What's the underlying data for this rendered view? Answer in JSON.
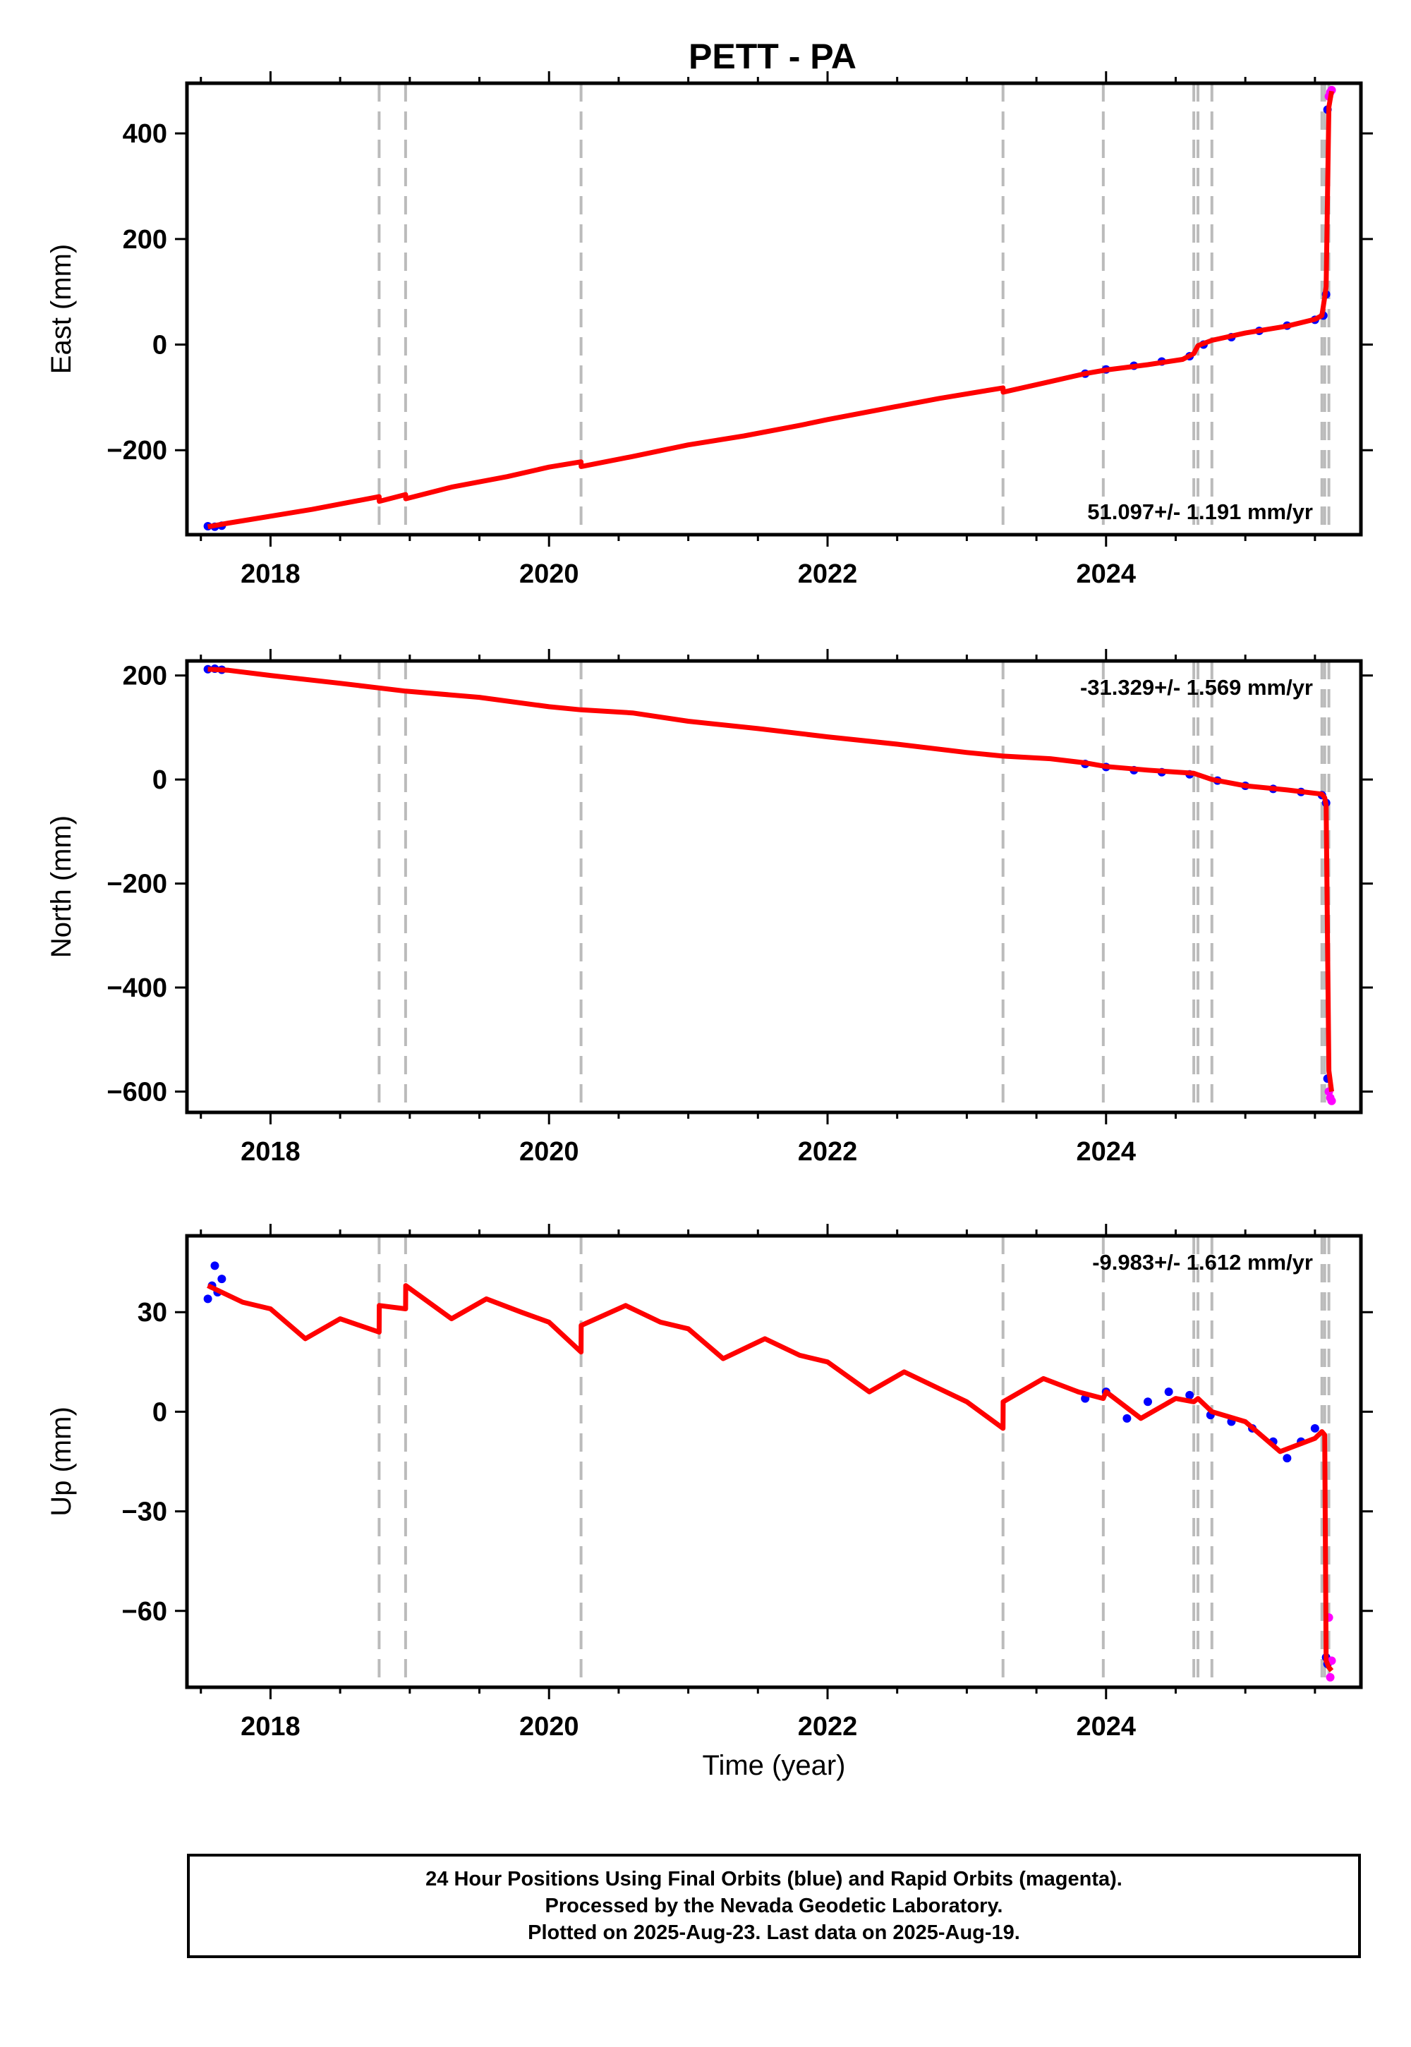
{
  "title": "PETT - PA",
  "colors": {
    "final_orbits": "#0000ff",
    "rapid_orbits": "#ff00ff",
    "model": "#ff0000",
    "event_lines": "#bbbbbb",
    "frame": "#000000"
  },
  "footer": {
    "lines": [
      "24 Hour Positions Using Final Orbits (blue) and Rapid Orbits (magenta).",
      "Processed by the Nevada Geodetic Laboratory.",
      "Plotted on 2025-Aug-23. Last data on 2025-Aug-19."
    ]
  },
  "chart_data": [
    {
      "type": "scatter",
      "component": "East",
      "ylabel": "East (mm)",
      "xlabel": "",
      "xlim": [
        2017.4,
        2025.83
      ],
      "ylim": [
        -360,
        495
      ],
      "yticks": [
        -200,
        0,
        200,
        400
      ],
      "xticks": [
        2018,
        2020,
        2022,
        2024
      ],
      "rate_label": "51.097+/- 1.191 mm/yr",
      "rate_position": "bottom-right",
      "event_lines": [
        2018.78,
        2018.97,
        2020.23,
        2023.26,
        2023.98,
        2024.63,
        2024.66,
        2024.76,
        2025.55,
        2025.57,
        2025.6
      ],
      "model": {
        "x": [
          2017.55,
          2017.7,
          2018.0,
          2018.3,
          2018.78,
          2018.781,
          2018.97,
          2018.971,
          2019.3,
          2019.7,
          2020.0,
          2020.23,
          2020.231,
          2020.6,
          2021.0,
          2021.4,
          2021.8,
          2022.0,
          2022.4,
          2022.8,
          2023.26,
          2023.261,
          2023.6,
          2023.85,
          2024.0,
          2024.3,
          2024.55,
          2024.63,
          2024.66,
          2024.76,
          2025.0,
          2025.3,
          2025.5,
          2025.55,
          2025.57,
          2025.58,
          2025.6,
          2025.62
        ],
        "y": [
          -345,
          -338,
          -325,
          -312,
          -288,
          -297,
          -284,
          -292,
          -270,
          -250,
          -232,
          -222,
          -231,
          -212,
          -190,
          -173,
          -153,
          -142,
          -122,
          -102,
          -82,
          -90,
          -70,
          -55,
          -48,
          -38,
          -28,
          -17,
          -2,
          8,
          22,
          35,
          48,
          55,
          90,
          110,
          450,
          480
        ]
      },
      "final_orbits": {
        "x": [
          2017.55,
          2017.6,
          2017.65,
          2023.85,
          2024.0,
          2024.2,
          2024.4,
          2024.6,
          2024.7,
          2024.9,
          2025.1,
          2025.3,
          2025.5,
          2025.56,
          2025.58,
          2025.59
        ],
        "y": [
          -344,
          -345,
          -343,
          -55,
          -47,
          -40,
          -32,
          -22,
          0,
          14,
          26,
          36,
          47,
          55,
          95,
          445
        ]
      },
      "rapid_orbits": {
        "x": [
          2025.6,
          2025.61,
          2025.62
        ],
        "y": [
          470,
          478,
          482
        ]
      }
    },
    {
      "type": "scatter",
      "component": "North",
      "ylabel": "North (mm)",
      "xlabel": "",
      "xlim": [
        2017.4,
        2025.83
      ],
      "ylim": [
        -640,
        228
      ],
      "yticks": [
        -600,
        -400,
        -200,
        0,
        200
      ],
      "xticks": [
        2018,
        2020,
        2022,
        2024
      ],
      "rate_label": "-31.329+/- 1.569 mm/yr",
      "rate_position": "top-right",
      "event_lines": [
        2018.78,
        2018.97,
        2020.23,
        2023.26,
        2023.98,
        2024.63,
        2024.66,
        2024.76,
        2025.55,
        2025.57,
        2025.6
      ],
      "model": {
        "x": [
          2017.55,
          2017.7,
          2018.0,
          2018.5,
          2018.78,
          2018.97,
          2019.5,
          2020.0,
          2020.23,
          2020.6,
          2021.0,
          2021.5,
          2022.0,
          2022.5,
          2023.0,
          2023.26,
          2023.6,
          2023.85,
          2024.0,
          2024.3,
          2024.63,
          2024.76,
          2025.0,
          2025.3,
          2025.55,
          2025.57,
          2025.58,
          2025.6,
          2025.62
        ],
        "y": [
          212,
          210,
          200,
          185,
          176,
          170,
          158,
          140,
          134,
          128,
          112,
          98,
          82,
          68,
          52,
          45,
          40,
          32,
          25,
          18,
          12,
          0,
          -12,
          -20,
          -28,
          -35,
          -50,
          -560,
          -600
        ]
      },
      "final_orbits": {
        "x": [
          2017.55,
          2017.6,
          2017.65,
          2023.85,
          2024.0,
          2024.2,
          2024.4,
          2024.6,
          2024.8,
          2025.0,
          2025.2,
          2025.4,
          2025.55,
          2025.58,
          2025.59
        ],
        "y": [
          212,
          213,
          211,
          30,
          24,
          18,
          14,
          10,
          -2,
          -12,
          -18,
          -24,
          -30,
          -45,
          -575
        ]
      },
      "rapid_orbits": {
        "x": [
          2025.6,
          2025.61,
          2025.62
        ],
        "y": [
          -600,
          -612,
          -618
        ]
      }
    },
    {
      "type": "scatter",
      "component": "Up",
      "ylabel": "Up (mm)",
      "xlabel": "Time (year)",
      "xlim": [
        2017.4,
        2025.83
      ],
      "ylim": [
        -83,
        53
      ],
      "yticks": [
        -60,
        -30,
        0,
        30
      ],
      "xticks": [
        2018,
        2020,
        2022,
        2024
      ],
      "rate_label": "-9.983+/- 1.612 mm/yr",
      "rate_position": "top-right",
      "event_lines": [
        2018.78,
        2018.97,
        2020.23,
        2023.26,
        2023.98,
        2024.63,
        2024.66,
        2024.76,
        2025.55,
        2025.57,
        2025.6
      ],
      "model": {
        "x": [
          2017.55,
          2017.8,
          2018.0,
          2018.25,
          2018.5,
          2018.78,
          2018.781,
          2018.97,
          2018.971,
          2019.3,
          2019.55,
          2019.8,
          2020.0,
          2020.23,
          2020.231,
          2020.55,
          2020.8,
          2021.0,
          2021.25,
          2021.55,
          2021.8,
          2022.0,
          2022.3,
          2022.55,
          2022.8,
          2023.0,
          2023.26,
          2023.261,
          2023.55,
          2023.8,
          2023.98,
          2024.0,
          2024.25,
          2024.5,
          2024.63,
          2024.66,
          2024.76,
          2025.0,
          2025.25,
          2025.5,
          2025.55,
          2025.57,
          2025.58,
          2025.6,
          2025.62
        ],
        "y": [
          38,
          33,
          31,
          22,
          28,
          24,
          32,
          31,
          38,
          28,
          34,
          30,
          27,
          18,
          26,
          32,
          27,
          25,
          16,
          22,
          17,
          15,
          6,
          12,
          7,
          3,
          -5,
          3,
          10,
          6,
          4,
          6,
          -2,
          4,
          3,
          4,
          0,
          -3,
          -12,
          -8,
          -6,
          -7,
          -75,
          -77,
          -78
        ]
      },
      "final_orbits": {
        "x": [
          2017.55,
          2017.58,
          2017.6,
          2017.62,
          2017.65,
          2023.85,
          2024.0,
          2024.15,
          2024.3,
          2024.45,
          2024.6,
          2024.75,
          2024.9,
          2025.05,
          2025.2,
          2025.3,
          2025.4,
          2025.5,
          2025.58,
          2025.59
        ],
        "y": [
          34,
          38,
          44,
          36,
          40,
          4,
          6,
          -2,
          3,
          6,
          5,
          -1,
          -3,
          -5,
          -9,
          -14,
          -9,
          -5,
          -74,
          -76
        ]
      },
      "rapid_orbits": {
        "x": [
          2025.6,
          2025.61,
          2025.62
        ],
        "y": [
          -62,
          -80,
          -75
        ]
      }
    }
  ]
}
